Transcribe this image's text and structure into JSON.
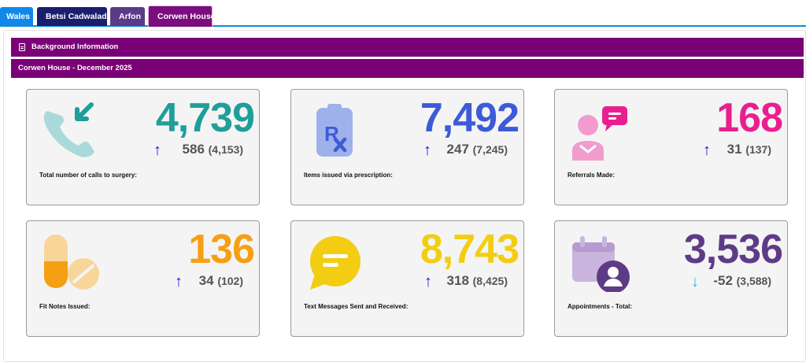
{
  "tabs": [
    "Wales",
    "Betsi Cadwaladr",
    "Arfon",
    "Corwen House"
  ],
  "header": {
    "section_title": "Background Information",
    "period_title": "Corwen House - December 2025"
  },
  "colors": {
    "calls": "#1f9e9a",
    "prescription": "#3d5bd6",
    "referrals": "#ea1f8f",
    "fit_notes": "#f5a013",
    "texts": "#f2cd12",
    "appointments": "#5e3b86",
    "arrow_up": "#1a1ad6",
    "arrow_down": "#28b7e0"
  },
  "cards": [
    {
      "icon": "phone-incoming-icon",
      "value": "4,739",
      "direction": "up",
      "change": "586",
      "previous": "(4,153)",
      "label": "Total number of calls to surgery:"
    },
    {
      "icon": "prescription-clipboard-icon",
      "value": "7,492",
      "direction": "up",
      "change": "247",
      "previous": "(7,245)",
      "label": "Items issued via prescription:"
    },
    {
      "icon": "referral-people-icon",
      "value": "168",
      "direction": "up",
      "change": "31",
      "previous": "(137)",
      "label": "Referrals Made:"
    },
    {
      "icon": "pill-tablet-icon",
      "value": "136",
      "direction": "up",
      "change": "34",
      "previous": "(102)",
      "label": "Fit Notes Issued:"
    },
    {
      "icon": "message-bubble-icon",
      "value": "8,743",
      "direction": "up",
      "change": "318",
      "previous": "(8,425)",
      "label": "Text Messages Sent and Received:"
    },
    {
      "icon": "calendar-user-icon",
      "value": "3,536",
      "direction": "down",
      "change": "-52",
      "previous": "(3,588)",
      "label": "Appointments - Total:"
    }
  ]
}
